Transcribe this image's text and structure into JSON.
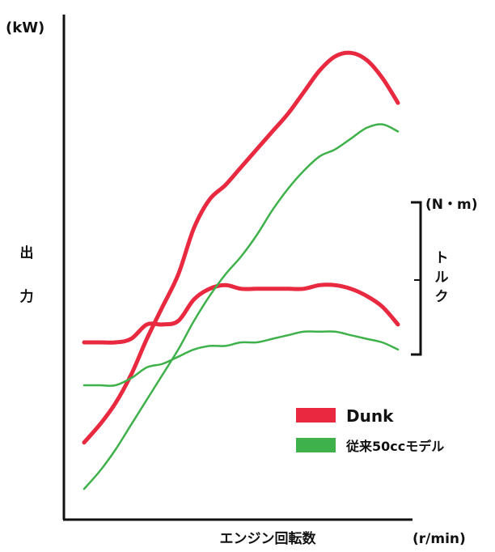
{
  "chart_data": {
    "type": "line",
    "left_axis_unit": "(kW)",
    "left_axis_label": [
      "出",
      "力"
    ],
    "right_axis_unit": "(N・m)",
    "right_axis_label": [
      "ト",
      "ル",
      "ク"
    ],
    "xlabel": "エンジン回転数",
    "x_unit": "(r/min)",
    "grid": false,
    "legend_position": "lower-right",
    "legend": [
      {
        "name": "Dunk",
        "color": "#e8293f"
      },
      {
        "name": "従来50ccモデル",
        "color": "#3fb14a"
      }
    ],
    "series": [
      {
        "name": "Dunk",
        "metric": "出力",
        "color": "#e8293f",
        "x": [
          0,
          5,
          10,
          15,
          20,
          25,
          30,
          35,
          40,
          45,
          50,
          55,
          60,
          65,
          70,
          75,
          80,
          85,
          90,
          95,
          100
        ],
        "y": [
          8,
          13,
          19,
          27,
          37,
          46,
          55,
          68,
          76,
          80,
          85,
          90,
          95,
          100,
          106,
          112,
          116,
          117,
          115,
          110,
          103
        ]
      },
      {
        "name": "Dunk",
        "metric": "トルク",
        "color": "#e8293f",
        "x": [
          0,
          5,
          10,
          15,
          20,
          25,
          30,
          35,
          40,
          45,
          50,
          55,
          60,
          65,
          70,
          75,
          80,
          85,
          90,
          95,
          100
        ],
        "y": [
          36,
          36,
          36,
          37,
          41,
          41,
          42,
          48,
          51,
          52,
          51,
          51,
          51,
          51,
          51,
          52,
          52,
          51,
          49,
          46,
          41
        ]
      },
      {
        "name": "従来50ccモデル",
        "metric": "出力",
        "color": "#3fb14a",
        "x": [
          0,
          5,
          10,
          15,
          20,
          25,
          30,
          35,
          40,
          45,
          50,
          55,
          60,
          65,
          70,
          75,
          80,
          85,
          90,
          95,
          100
        ],
        "y": [
          -5,
          0,
          6,
          13,
          20,
          27,
          34,
          42,
          49,
          55,
          60,
          66,
          73,
          79,
          84,
          88,
          90,
          93,
          96,
          97,
          95
        ]
      },
      {
        "name": "従来50ccモデル",
        "metric": "トルク",
        "color": "#3fb14a",
        "x": [
          0,
          5,
          10,
          15,
          20,
          25,
          30,
          35,
          40,
          45,
          50,
          55,
          60,
          65,
          70,
          75,
          80,
          85,
          90,
          95,
          100
        ],
        "y": [
          24,
          24,
          24,
          26,
          29,
          30,
          32,
          34,
          35,
          35,
          36,
          36,
          37,
          38,
          39,
          39,
          39,
          38,
          37,
          36,
          34
        ]
      }
    ]
  }
}
